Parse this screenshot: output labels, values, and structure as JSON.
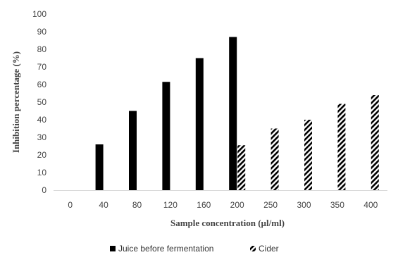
{
  "chart_data": {
    "type": "bar",
    "title": "",
    "xlabel": "Sample concentration (µl/ml)",
    "ylabel": "Inhibition percentage (%)",
    "categories": [
      "0",
      "40",
      "80",
      "120",
      "160",
      "200",
      "250",
      "300",
      "350",
      "400"
    ],
    "ylim": [
      0,
      100
    ],
    "yticks": [
      0,
      10,
      20,
      30,
      40,
      50,
      60,
      70,
      80,
      90,
      100
    ],
    "grid": false,
    "legend_position": "bottom",
    "series": [
      {
        "name": "Juice before fermentation",
        "color": "#000000",
        "pattern": "solid",
        "values": [
          null,
          26,
          45,
          61.5,
          75,
          87,
          null,
          null,
          null,
          null
        ]
      },
      {
        "name": "Cider",
        "color": "#000000",
        "pattern": "diagonal-hatch",
        "values": [
          null,
          null,
          null,
          null,
          null,
          25.5,
          35,
          40,
          49,
          54
        ]
      }
    ]
  }
}
